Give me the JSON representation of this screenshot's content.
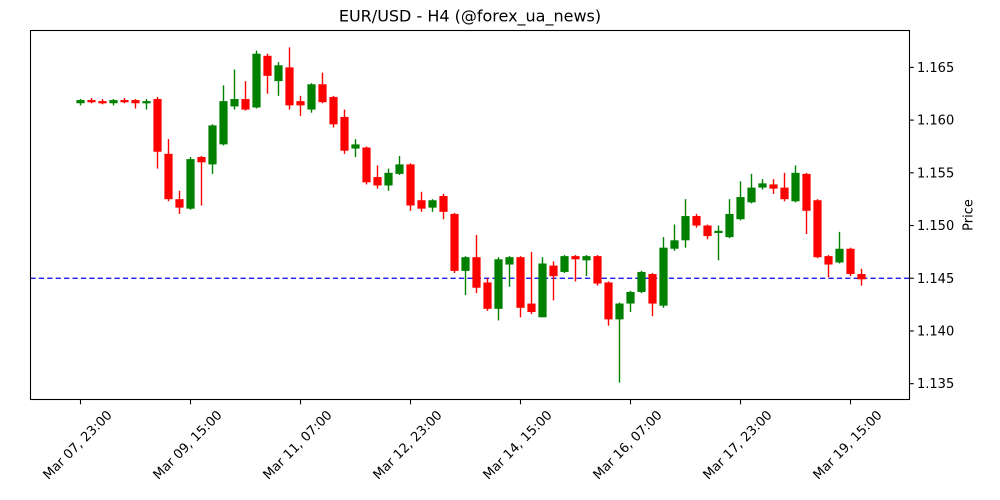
{
  "title": "EUR/USD - H4 (@forex_ua_news)",
  "ylabel": "Price",
  "colors": {
    "up": "#008000",
    "down": "#ff0000",
    "hline": "#0000ee",
    "axis": "#000000",
    "background": "#ffffff"
  },
  "chart_data": {
    "type": "candlestick",
    "instrument": "EUR/USD",
    "timeframe": "H4",
    "legend": "none",
    "grid": false,
    "y_axis_side": "right",
    "ylim": [
      1.1335,
      1.1685
    ],
    "y_ticks": [
      1.165,
      1.16,
      1.155,
      1.15,
      1.145,
      1.14,
      1.135
    ],
    "x_ticks": [
      {
        "index": 0,
        "label": "Mar 07, 23:00"
      },
      {
        "index": 10,
        "label": "Mar 09, 15:00"
      },
      {
        "index": 20,
        "label": "Mar 11, 07:00"
      },
      {
        "index": 30,
        "label": "Mar 12, 23:00"
      },
      {
        "index": 40,
        "label": "Mar 14, 15:00"
      },
      {
        "index": 50,
        "label": "Mar 16, 07:00"
      },
      {
        "index": 60,
        "label": "Mar 17, 23:00"
      },
      {
        "index": 70,
        "label": "Mar 19, 15:00"
      }
    ],
    "hline": {
      "value": 1.145,
      "style": "dashed",
      "color": "#0000ee"
    },
    "ohlc_order": [
      "open",
      "high",
      "low",
      "close"
    ],
    "candles": [
      [
        1.1616,
        1.162,
        1.1614,
        1.1619
      ],
      [
        1.1619,
        1.1621,
        1.1616,
        1.1617
      ],
      [
        1.1618,
        1.162,
        1.1615,
        1.1617
      ],
      [
        1.1616,
        1.162,
        1.1614,
        1.1619
      ],
      [
        1.1619,
        1.1621,
        1.1616,
        1.1617
      ],
      [
        1.1619,
        1.162,
        1.1611,
        1.1616
      ],
      [
        1.1616,
        1.162,
        1.161,
        1.1618
      ],
      [
        1.162,
        1.1622,
        1.1554,
        1.157
      ],
      [
        1.1568,
        1.1582,
        1.1523,
        1.1525
      ],
      [
        1.1525,
        1.1533,
        1.1511,
        1.1517
      ],
      [
        1.1516,
        1.1565,
        1.1515,
        1.1563
      ],
      [
        1.1565,
        1.1566,
        1.1519,
        1.156
      ],
      [
        1.1558,
        1.1596,
        1.1549,
        1.1595
      ],
      [
        1.1577,
        1.1633,
        1.1576,
        1.1618
      ],
      [
        1.1613,
        1.1648,
        1.161,
        1.162
      ],
      [
        1.162,
        1.1637,
        1.1609,
        1.161
      ],
      [
        1.1612,
        1.1666,
        1.1611,
        1.1663
      ],
      [
        1.1661,
        1.1663,
        1.1625,
        1.1642
      ],
      [
        1.1637,
        1.1655,
        1.1623,
        1.1652
      ],
      [
        1.165,
        1.1669,
        1.161,
        1.1614
      ],
      [
        1.1618,
        1.1623,
        1.1604,
        1.1614
      ],
      [
        1.161,
        1.1635,
        1.1607,
        1.1634
      ],
      [
        1.1634,
        1.1645,
        1.1616,
        1.1617
      ],
      [
        1.1622,
        1.1623,
        1.1593,
        1.1596
      ],
      [
        1.1603,
        1.161,
        1.1568,
        1.1571
      ],
      [
        1.1573,
        1.1582,
        1.1565,
        1.1577
      ],
      [
        1.1574,
        1.1575,
        1.1539,
        1.1541
      ],
      [
        1.1546,
        1.1557,
        1.1535,
        1.1538
      ],
      [
        1.1538,
        1.1554,
        1.1533,
        1.155
      ],
      [
        1.1549,
        1.1566,
        1.1548,
        1.1558
      ],
      [
        1.1558,
        1.1559,
        1.1514,
        1.1519
      ],
      [
        1.1524,
        1.1532,
        1.1513,
        1.1516
      ],
      [
        1.1517,
        1.1525,
        1.1513,
        1.1524
      ],
      [
        1.1528,
        1.153,
        1.1506,
        1.1513
      ],
      [
        1.1511,
        1.1512,
        1.1455,
        1.1457
      ],
      [
        1.1457,
        1.1471,
        1.1434,
        1.147
      ],
      [
        1.147,
        1.1491,
        1.1436,
        1.1441
      ],
      [
        1.1446,
        1.145,
        1.1419,
        1.1421
      ],
      [
        1.1421,
        1.147,
        1.141,
        1.1468
      ],
      [
        1.1463,
        1.1471,
        1.1442,
        1.147
      ],
      [
        1.147,
        1.1471,
        1.1413,
        1.1422
      ],
      [
        1.1426,
        1.1475,
        1.1416,
        1.1418
      ],
      [
        1.1413,
        1.147,
        1.1413,
        1.1464
      ],
      [
        1.1462,
        1.1466,
        1.1429,
        1.1452
      ],
      [
        1.1456,
        1.1472,
        1.1455,
        1.1471
      ],
      [
        1.1471,
        1.1472,
        1.1447,
        1.1468
      ],
      [
        1.1467,
        1.1472,
        1.1452,
        1.1471
      ],
      [
        1.1471,
        1.1472,
        1.1443,
        1.1445
      ],
      [
        1.1446,
        1.1447,
        1.1405,
        1.1411
      ],
      [
        1.1411,
        1.1427,
        1.1351,
        1.1426
      ],
      [
        1.1426,
        1.1438,
        1.1418,
        1.1437
      ],
      [
        1.1437,
        1.1457,
        1.1436,
        1.1456
      ],
      [
        1.1454,
        1.1455,
        1.1414,
        1.1426
      ],
      [
        1.1424,
        1.1489,
        1.1422,
        1.1479
      ],
      [
        1.1478,
        1.1501,
        1.1476,
        1.1486
      ],
      [
        1.1486,
        1.1525,
        1.1479,
        1.1509
      ],
      [
        1.1509,
        1.1511,
        1.1498,
        1.15
      ],
      [
        1.15,
        1.1501,
        1.1487,
        1.149
      ],
      [
        1.1493,
        1.15,
        1.1467,
        1.1495
      ],
      [
        1.1489,
        1.1525,
        1.1488,
        1.1511
      ],
      [
        1.1506,
        1.1542,
        1.1505,
        1.1527
      ],
      [
        1.1522,
        1.1549,
        1.1521,
        1.1536
      ],
      [
        1.1536,
        1.1544,
        1.1534,
        1.154
      ],
      [
        1.1539,
        1.1544,
        1.153,
        1.1535
      ],
      [
        1.1536,
        1.155,
        1.1523,
        1.1525
      ],
      [
        1.1523,
        1.1557,
        1.1522,
        1.155
      ],
      [
        1.1549,
        1.155,
        1.1492,
        1.1514
      ],
      [
        1.1524,
        1.1525,
        1.1469,
        1.147
      ],
      [
        1.1471,
        1.1472,
        1.1451,
        1.1463
      ],
      [
        1.1465,
        1.1494,
        1.1464,
        1.1478
      ],
      [
        1.1478,
        1.1479,
        1.1452,
        1.1454
      ],
      [
        1.1454,
        1.1459,
        1.1443,
        1.1449
      ]
    ]
  }
}
